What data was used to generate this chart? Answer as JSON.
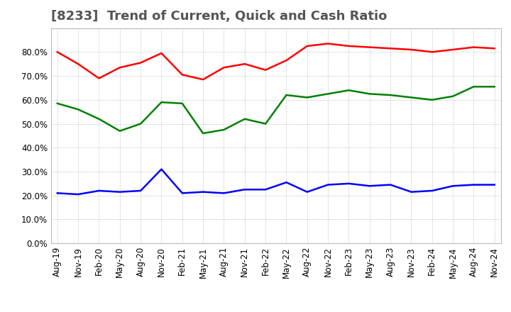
{
  "title": "[8233]  Trend of Current, Quick and Cash Ratio",
  "x_labels": [
    "Aug-19",
    "Nov-19",
    "Feb-20",
    "May-20",
    "Aug-20",
    "Nov-20",
    "Feb-21",
    "May-21",
    "Aug-21",
    "Nov-21",
    "Feb-22",
    "May-22",
    "Aug-22",
    "Nov-22",
    "Feb-23",
    "May-23",
    "Aug-23",
    "Nov-23",
    "Feb-24",
    "May-24",
    "Aug-24",
    "Nov-24"
  ],
  "current_ratio": [
    80.0,
    75.0,
    69.0,
    73.5,
    75.5,
    79.5,
    70.5,
    68.5,
    73.5,
    75.0,
    72.5,
    76.5,
    82.5,
    83.5,
    82.5,
    82.0,
    81.5,
    81.0,
    80.0,
    81.0,
    82.0,
    81.5
  ],
  "quick_ratio": [
    58.5,
    56.0,
    52.0,
    47.0,
    50.0,
    59.0,
    58.5,
    46.0,
    47.5,
    52.0,
    50.0,
    62.0,
    61.0,
    62.5,
    64.0,
    62.5,
    62.0,
    61.0,
    60.0,
    61.5,
    65.5,
    65.5
  ],
  "cash_ratio": [
    21.0,
    20.5,
    22.0,
    21.5,
    22.0,
    31.0,
    21.0,
    21.5,
    21.0,
    22.5,
    22.5,
    25.5,
    21.5,
    24.5,
    25.0,
    24.0,
    24.5,
    21.5,
    22.0,
    24.0,
    24.5,
    24.5
  ],
  "current_color": "#ff0000",
  "quick_color": "#008000",
  "cash_color": "#0000ff",
  "ylim": [
    0.0,
    90.0
  ],
  "yticks": [
    0.0,
    10.0,
    20.0,
    30.0,
    40.0,
    50.0,
    60.0,
    70.0,
    80.0
  ],
  "grid_color": "#aaaaaa",
  "background_color": "#ffffff",
  "title_color": "#555555",
  "title_fontsize": 13,
  "tick_fontsize": 8.5,
  "legend_fontsize": 10,
  "line_width": 1.8
}
